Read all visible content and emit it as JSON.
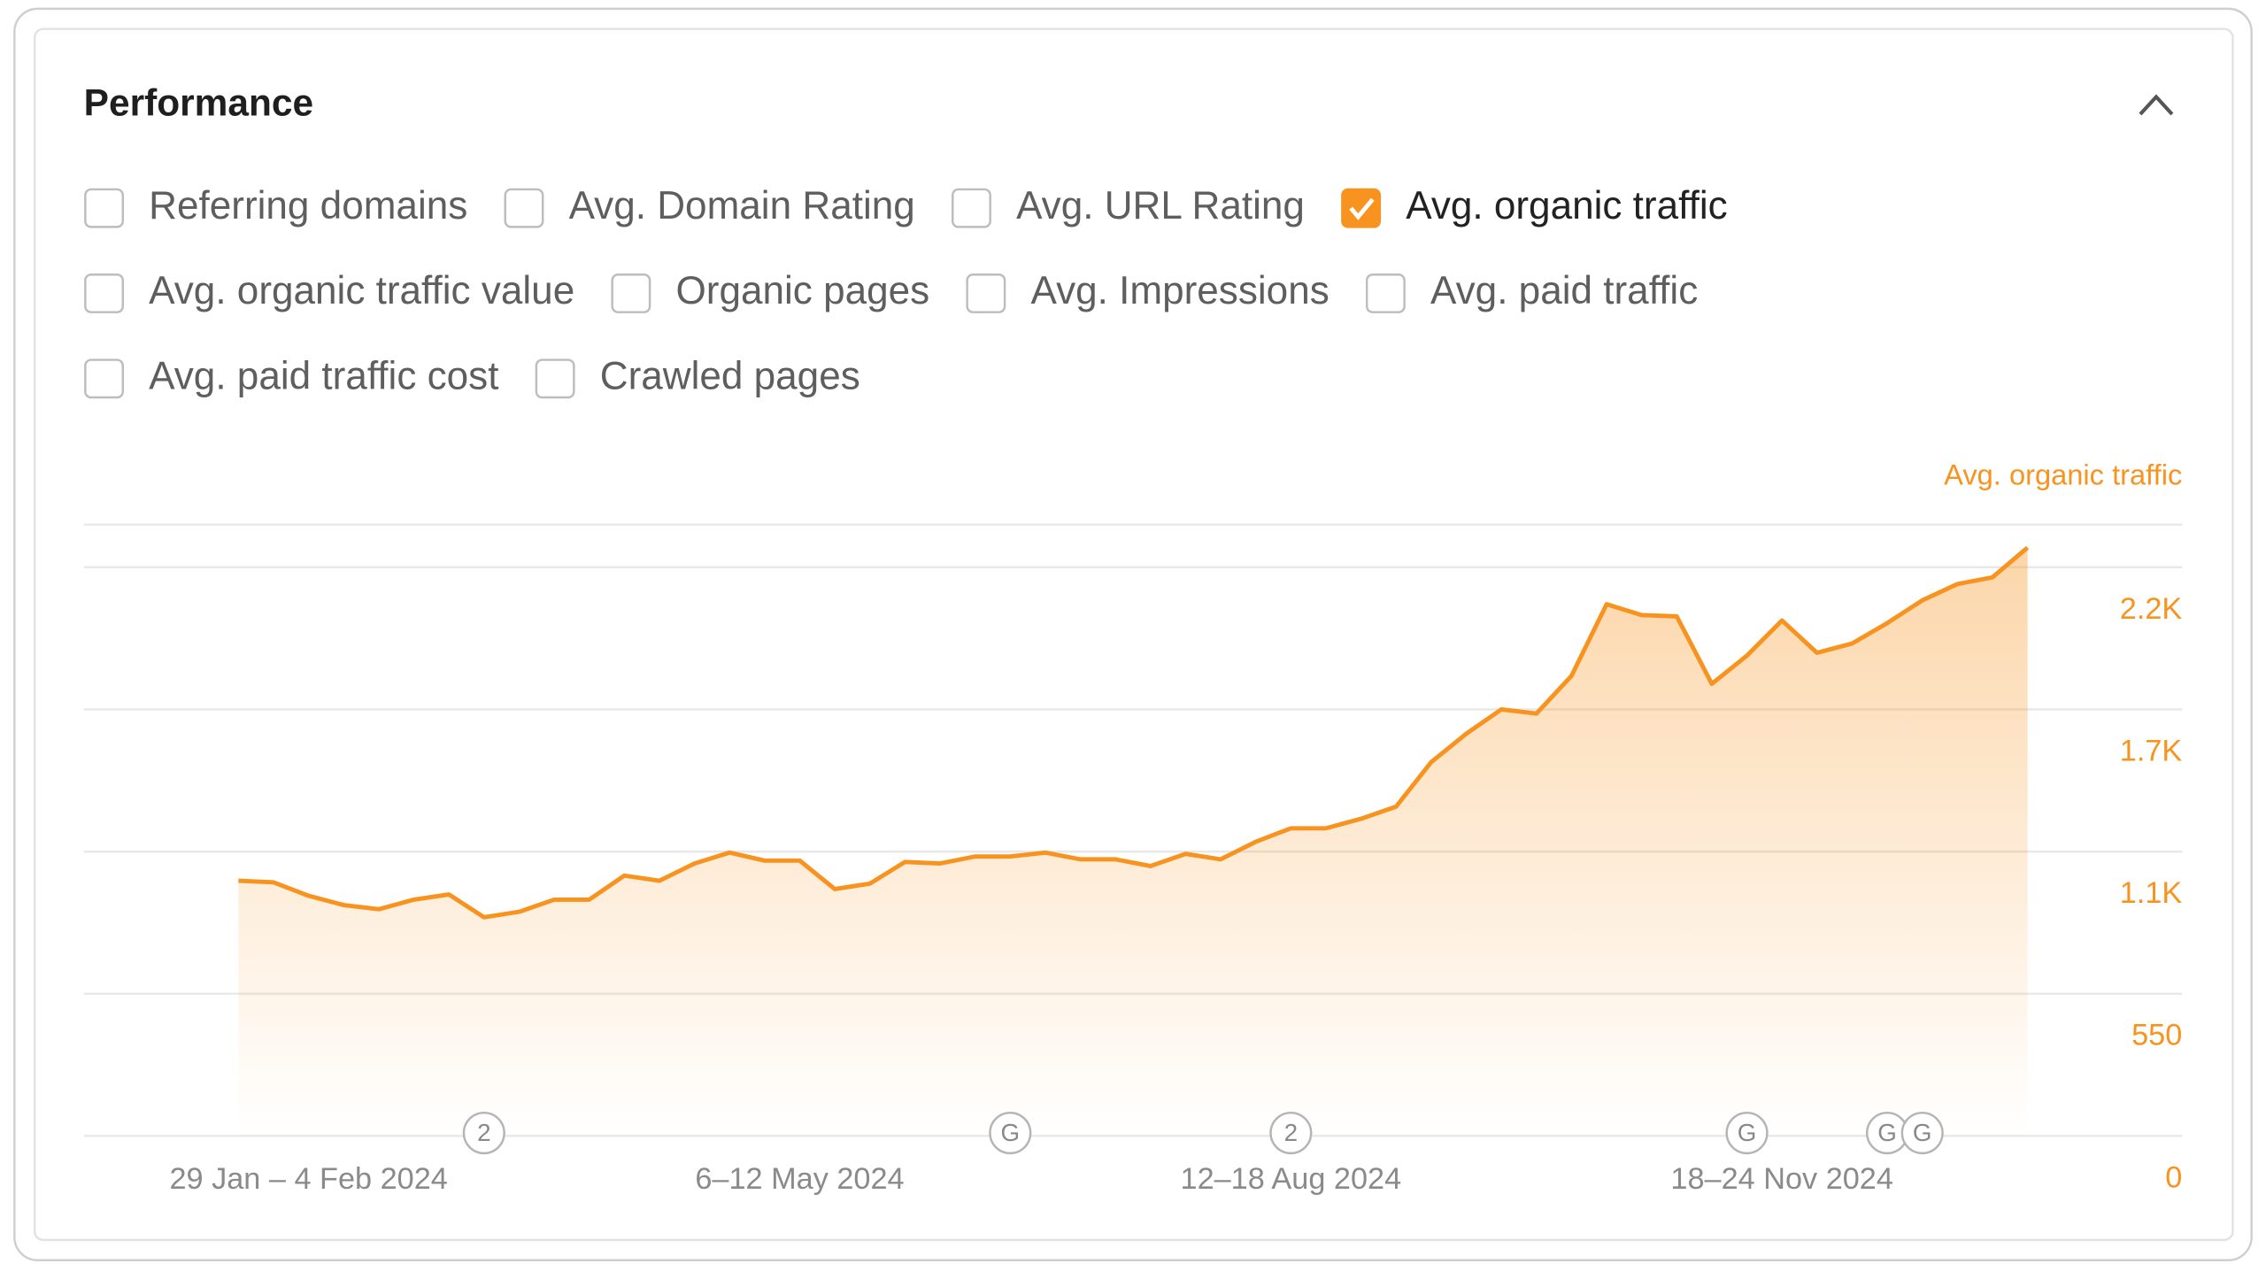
{
  "header": {
    "title": "Performance"
  },
  "filters": [
    [
      {
        "label": "Referring domains",
        "checked": false
      },
      {
        "label": "Avg. Domain Rating",
        "checked": false
      },
      {
        "label": "Avg. URL Rating",
        "checked": false
      },
      {
        "label": "Avg. organic traffic",
        "checked": true
      }
    ],
    [
      {
        "label": "Avg. organic traffic value",
        "checked": false
      },
      {
        "label": "Organic pages",
        "checked": false
      },
      {
        "label": "Avg. Impressions",
        "checked": false
      },
      {
        "label": "Avg. paid traffic",
        "checked": false
      }
    ],
    [
      {
        "label": "Avg. paid traffic cost",
        "checked": false
      },
      {
        "label": "Crawled pages",
        "checked": false
      }
    ]
  ],
  "chart_data": {
    "type": "area",
    "categories": [
      null,
      null,
      "29 Jan – 4 Feb 2024",
      null,
      null,
      null,
      null,
      null,
      null,
      null,
      null,
      null,
      null,
      null,
      null,
      null,
      "6–12 May 2024",
      null,
      null,
      null,
      null,
      null,
      null,
      null,
      null,
      null,
      null,
      null,
      null,
      null,
      "12–18 Aug 2024",
      null,
      null,
      null,
      null,
      null,
      null,
      null,
      null,
      null,
      null,
      null,
      null,
      null,
      "18–24 Nov 2024",
      null,
      null,
      null,
      null,
      null,
      null,
      null
    ],
    "markers": [
      null,
      null,
      null,
      null,
      null,
      null,
      null,
      "2",
      null,
      null,
      null,
      null,
      null,
      null,
      null,
      null,
      null,
      null,
      null,
      null,
      null,
      null,
      "G",
      null,
      null,
      null,
      null,
      null,
      null,
      null,
      "2",
      null,
      null,
      null,
      null,
      null,
      null,
      null,
      null,
      null,
      null,
      null,
      null,
      "G",
      null,
      null,
      null,
      "G",
      "G",
      null,
      null,
      null
    ],
    "series": [
      {
        "name": "Avg. organic traffic",
        "color": "#f7931e",
        "axis": "y2",
        "values": [
          987,
          981,
          929,
          893,
          877,
          914,
          934,
          846,
          867,
          914,
          914,
          1007,
          987,
          1054,
          1096,
          1065,
          1065,
          955,
          976,
          1060,
          1054,
          1081,
          1081,
          1096,
          1070,
          1070,
          1044,
          1091,
          1070,
          1138,
          1190,
          1190,
          1227,
          1274,
          1446,
          1556,
          1650,
          1634,
          1780,
          2057,
          2015,
          2010,
          1749,
          1858,
          1994,
          1869,
          1905,
          1984,
          2072,
          2135,
          2161,
          2276
        ]
      }
    ],
    "y2lim": [
      0,
      2365
    ],
    "y2ticks": [
      0,
      550,
      {
        "value": 1100,
        "label": "1.1K"
      },
      {
        "value": 1650,
        "label": "1.7K"
      },
      {
        "value": 2200,
        "label": "2.2K"
      }
    ],
    "grid": true
  }
}
